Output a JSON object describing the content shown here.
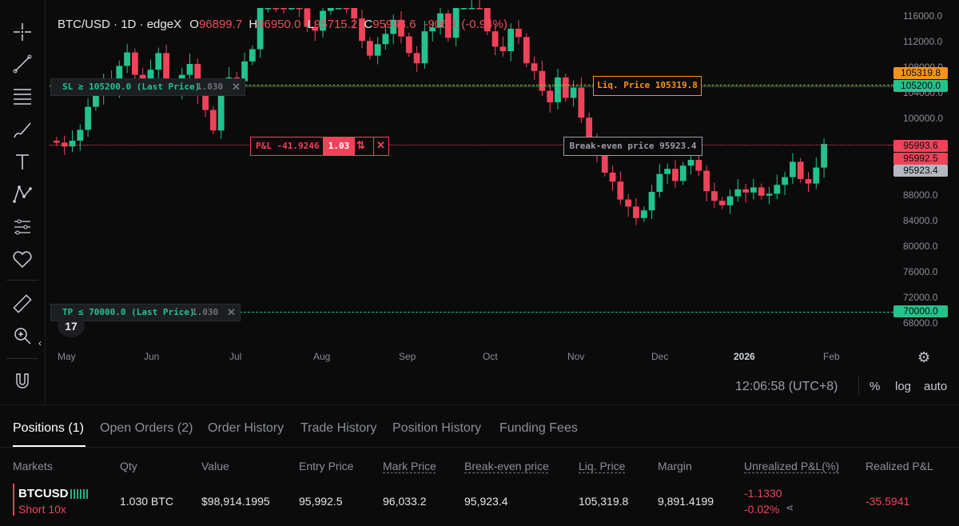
{
  "legend": {
    "symbol": "BTC/USD",
    "interval": "1D",
    "exchange": "edgeX",
    "o_label": "O",
    "o": "96899.7",
    "h_label": "H",
    "h": "96950.0",
    "l_label": "L",
    "l": "95715.2",
    "c_label": "C",
    "c": "95993.6",
    "change": "-906.1",
    "change_pct": "(-0.94%)"
  },
  "x_axis": [
    "May",
    "Jun",
    "Jul",
    "Aug",
    "Sep",
    "Oct",
    "Nov",
    "Dec",
    "2026",
    "Feb"
  ],
  "y_axis": [
    "116000.0",
    "112000.0",
    "108000.0",
    "104000.0",
    "100000.0",
    "96000.0",
    "92000.0",
    "88000.0",
    "84000.0",
    "80000.0",
    "76000.0",
    "72000.0",
    "68000.0"
  ],
  "price_tags": [
    {
      "text": "105319.8",
      "color": "#f7931a"
    },
    {
      "text": "105200.0",
      "color": "#22c38e"
    },
    {
      "text": "95993.6",
      "color": "#f0435a"
    },
    {
      "text": "95992.5",
      "color": "#f0435a"
    },
    {
      "text": "95923.4",
      "color": "#b5b8c0"
    },
    {
      "text": "70000.0",
      "color": "#22c38e"
    }
  ],
  "sl_label": "SL ≥ 105200.0 (Last Price)",
  "sl_qty": "1.030",
  "tp_label": "TP ≤ 70000.0 (Last Price)",
  "tp_qty": "1.030",
  "liq_label": "Liq. Price 105319.8",
  "pnl_label": "P&L -41.9246",
  "pnl_qty": "1.03",
  "be_label": "Break-even price 95923.4",
  "clock": "12:06:58 (UTC+8)",
  "bottom_buttons": {
    "percent": "%",
    "log": "log",
    "auto": "auto"
  },
  "tabs": [
    "Positions (1)",
    "Open Orders (2)",
    "Order History",
    "Trade History",
    "Position History",
    "Funding Fees"
  ],
  "columns": [
    "Markets",
    "Qty",
    "Value",
    "Entry Price",
    "Mark Price",
    "Break-even price",
    "Liq. Price",
    "Margin",
    "Unrealized P&L(%)",
    "Realized P&L"
  ],
  "row": {
    "market": "BTCUSD",
    "side": "Short 10x",
    "qty": "1.030 BTC",
    "value": "$98,914.1995",
    "entry": "95,992.5",
    "mark": "96,033.2",
    "be": "95,923.4",
    "liq": "105,319.8",
    "margin": "9,891.4199",
    "upnl": "-1.1330",
    "upnl_pct": "-0.02%",
    "rpnl": "-35.5941"
  },
  "chart_data": {
    "type": "candlestick",
    "title": "BTC/USD · 1D · edgeX",
    "x_range": [
      "May",
      "Feb"
    ],
    "ylim": [
      66000,
      117000
    ],
    "close_series": [
      96200,
      95600,
      96500,
      98200,
      101800,
      103500,
      105900,
      104800,
      108200,
      110300,
      106800,
      105100,
      107600,
      110200,
      104900,
      104300,
      106800,
      108500,
      103800,
      101300,
      98100,
      104500,
      106400,
      105800,
      108900,
      110800,
      117400,
      118900,
      118200,
      117500,
      119800,
      117200,
      114300,
      113700,
      116800,
      118600,
      121200,
      117300,
      115600,
      112100,
      109800,
      111600,
      113200,
      115400,
      112800,
      110200,
      108600,
      113600,
      114200,
      116400,
      112600,
      117800,
      120300,
      123000,
      121400,
      113600,
      111200,
      110500,
      114000,
      112700,
      108600,
      107400,
      104300,
      102500,
      106400,
      103200,
      104800,
      100100,
      96300,
      94200,
      91500,
      90100,
      87300,
      86200,
      84400,
      85600,
      88500,
      91300,
      92100,
      90200,
      92600,
      93500,
      91800,
      88600,
      87100,
      86400,
      87800,
      88900,
      88400,
      89200,
      87900,
      88200,
      89600,
      90800,
      93200,
      90500,
      89800,
      92300,
      95993.6
    ]
  }
}
